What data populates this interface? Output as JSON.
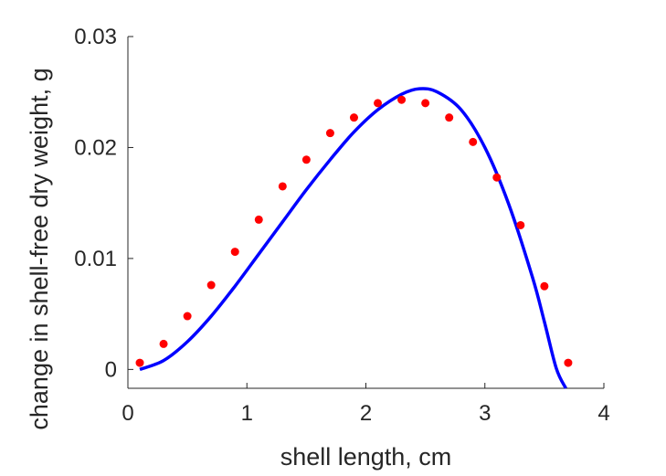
{
  "chart_data": {
    "type": "scatter",
    "title": "",
    "xlabel": "shell length, cm",
    "ylabel": "change in shell-free dry weight, g",
    "xlim": [
      0,
      4
    ],
    "ylim": [
      -0.0017,
      0.03
    ],
    "xticks": [
      0,
      1,
      2,
      3,
      4
    ],
    "xtick_labels": [
      "0",
      "1",
      "2",
      "3",
      "4"
    ],
    "yticks": [
      0,
      0.01,
      0.02,
      0.03
    ],
    "ytick_labels": [
      "0",
      "0.01",
      "0.02",
      "0.03"
    ],
    "grid": false,
    "legend": "none",
    "series": [
      {
        "kind": "points",
        "color": "#ff0000",
        "x": [
          0.1,
          0.3,
          0.5,
          0.7,
          0.9,
          1.1,
          1.3,
          1.5,
          1.7,
          1.9,
          2.1,
          2.3,
          2.5,
          2.7,
          2.9,
          3.1,
          3.3,
          3.5,
          3.7
        ],
        "y": [
          0.0006,
          0.0023,
          0.0048,
          0.0076,
          0.0106,
          0.0135,
          0.0165,
          0.0189,
          0.0213,
          0.0227,
          0.024,
          0.0243,
          0.024,
          0.0227,
          0.0205,
          0.0173,
          0.013,
          0.0075,
          0.0006
        ]
      },
      {
        "kind": "line",
        "color": "#0000ff",
        "x": [
          0.1,
          0.3,
          0.5,
          0.7,
          0.9,
          1.1,
          1.3,
          1.5,
          1.7,
          1.9,
          2.1,
          2.3,
          2.45,
          2.6,
          2.8,
          3.0,
          3.2,
          3.4,
          3.5,
          3.6,
          3.68
        ],
        "y": [
          0.0,
          0.0008,
          0.0025,
          0.0048,
          0.0075,
          0.0104,
          0.0133,
          0.0162,
          0.0189,
          0.0214,
          0.0234,
          0.0248,
          0.0253,
          0.025,
          0.0234,
          0.02,
          0.0149,
          0.0083,
          0.0043,
          0.0001,
          -0.0017
        ]
      }
    ]
  }
}
